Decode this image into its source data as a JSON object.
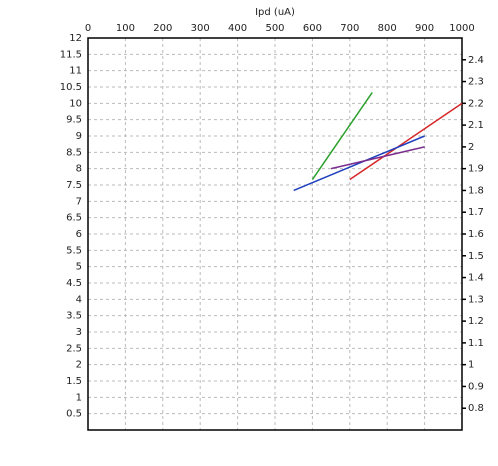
{
  "chart_data": {
    "type": "line",
    "x_label": "Ipd (uA)",
    "xlim": [
      0,
      1000
    ],
    "xticks": [
      0,
      100,
      200,
      300,
      400,
      500,
      600,
      700,
      800,
      900,
      1000
    ],
    "ylim": [
      0,
      12
    ],
    "yticks": [
      0.5,
      1,
      1.5,
      2,
      2.5,
      3,
      3.5,
      4,
      4.5,
      5,
      5.5,
      6,
      6.5,
      7,
      7.5,
      8,
      8.5,
      9,
      9.5,
      10,
      10.5,
      11,
      11.5,
      12
    ],
    "y2lim": [
      0.7,
      2.5
    ],
    "y2ticks": [
      0.8,
      0.9,
      1,
      1.1,
      1.2,
      1.3,
      1.4,
      1.5,
      1.6,
      1.7,
      1.8,
      1.9,
      2,
      2.1,
      2.2,
      2.3,
      2.4
    ],
    "grid": true,
    "series": [
      {
        "color": "#d62728",
        "axis": "y2",
        "x": [
          700,
          1000
        ],
        "values": [
          1.85,
          2.2
        ]
      },
      {
        "color": "#2ca02c",
        "axis": "y2",
        "x": [
          600,
          760
        ],
        "values": [
          1.85,
          2.25
        ]
      },
      {
        "color": "#1f3fbf",
        "axis": "y2",
        "x": [
          550,
          900
        ],
        "values": [
          1.8,
          2.05
        ]
      },
      {
        "color": "#7b2d8e",
        "axis": "y2",
        "x": [
          650,
          900
        ],
        "values": [
          1.9,
          2.0
        ]
      }
    ]
  }
}
